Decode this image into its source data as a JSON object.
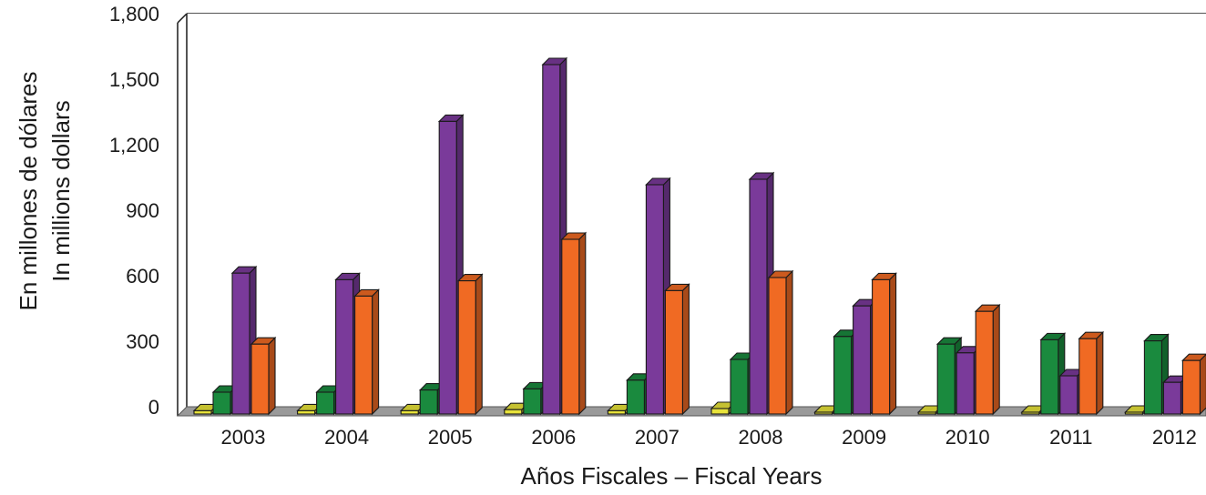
{
  "chart_data": {
    "type": "bar",
    "title": "",
    "xlabel": "Años Fiscales – Fiscal Years",
    "ylabel_lines": [
      "En millones de dólares",
      "In millions dollars"
    ],
    "categories": [
      "2003",
      "2004",
      "2005",
      "2006",
      "2007",
      "2008",
      "2009",
      "2010",
      "2011",
      "2012"
    ],
    "y_ticks": [
      0,
      300,
      600,
      900,
      1200,
      1500,
      1800
    ],
    "y_tick_labels": [
      "0",
      "300",
      "600",
      "900",
      "1,200",
      "1,500",
      "1,800"
    ],
    "ylim": [
      0,
      1800
    ],
    "grid": true,
    "legend": "none",
    "series": [
      {
        "color": "#e8e33a",
        "values": [
          15,
          15,
          15,
          20,
          15,
          25,
          5,
          3,
          5,
          2
        ]
      },
      {
        "color": "#1a8a3e",
        "values": [
          100,
          100,
          110,
          115,
          155,
          250,
          355,
          320,
          340,
          335
        ]
      },
      {
        "color": "#7a3a9a",
        "values": [
          645,
          615,
          1340,
          1600,
          1050,
          1075,
          495,
          280,
          175,
          145
        ]
      },
      {
        "color": "#f06a23",
        "values": [
          320,
          540,
          610,
          800,
          565,
          625,
          615,
          470,
          345,
          245
        ]
      }
    ]
  }
}
